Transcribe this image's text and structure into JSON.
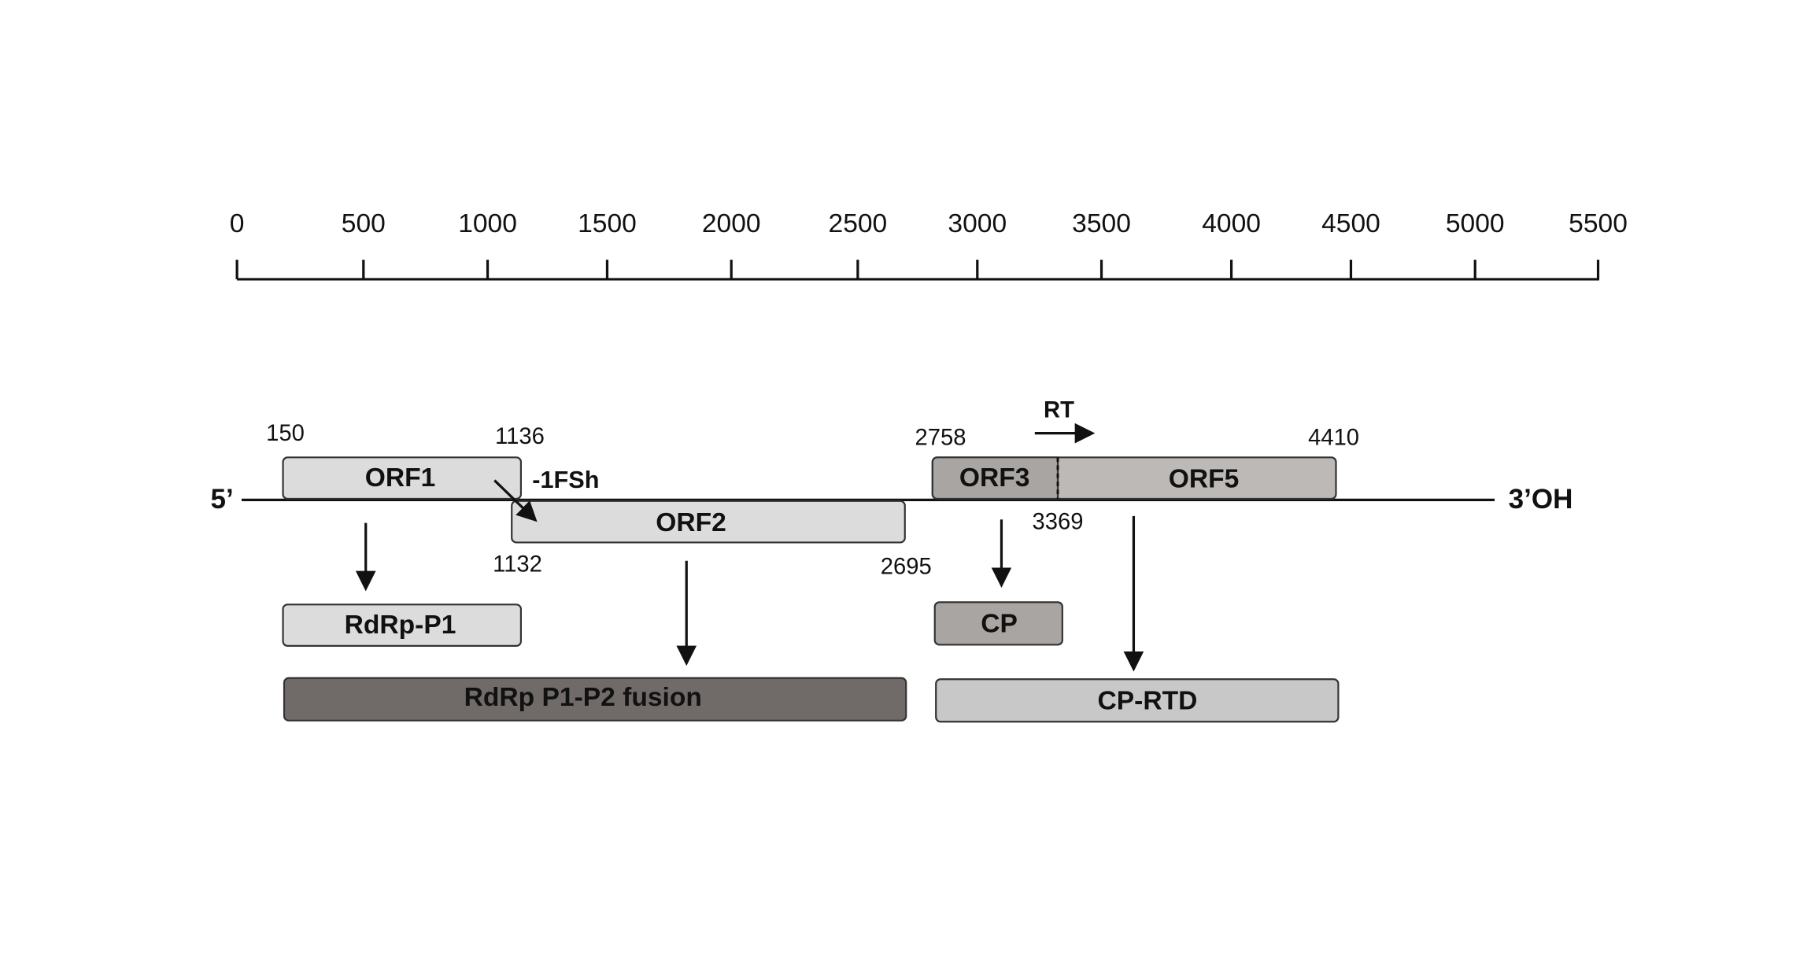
{
  "scale": {
    "ticks": [
      0,
      500,
      1000,
      1500,
      2000,
      2500,
      3000,
      3500,
      4000,
      4500,
      5000,
      5500
    ]
  },
  "genome": {
    "five_prime": "5’",
    "three_prime": "3’OH"
  },
  "orfs": [
    {
      "label": "ORF1",
      "start": 150,
      "end": 1136
    },
    {
      "label": "ORF2",
      "start": 1132,
      "end": 2695
    },
    {
      "label": "ORF3",
      "start": 2758
    },
    {
      "label": "ORF5",
      "start": 3369,
      "end": 4410
    }
  ],
  "annotations": {
    "frameshift": "-1FSh",
    "readthrough": "RT"
  },
  "products": [
    {
      "label": "RdRp-P1"
    },
    {
      "label": "RdRp P1-P2 fusion"
    },
    {
      "label": "CP"
    },
    {
      "label": "CP-RTD"
    }
  ]
}
